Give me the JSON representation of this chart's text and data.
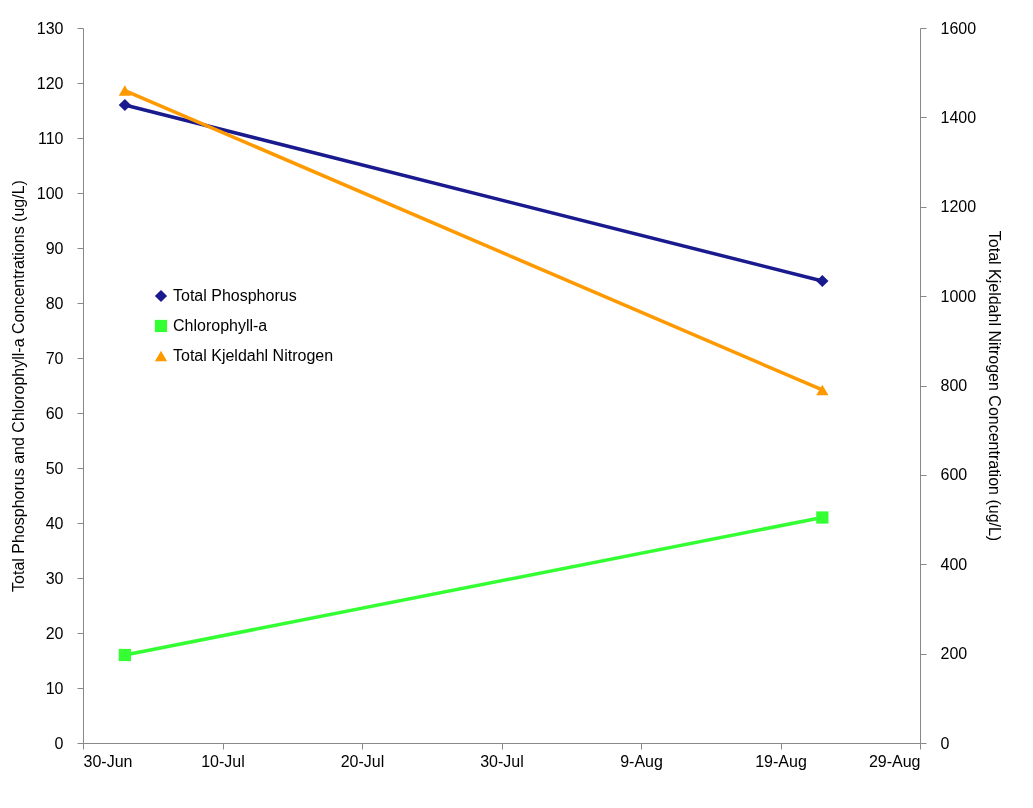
{
  "chart_data": {
    "type": "line",
    "ylabel": "Total Phosphorus and Chlorophyll-a Concentrations (ug/L)",
    "y2label": "Total Kjeldahl Nitrogen Concentration (ug/L)",
    "x": [
      "--07-03",
      "--08-22"
    ],
    "series": [
      {
        "name": "Total Phosphorus",
        "color": "#1a1a8f",
        "values": [
          116,
          84
        ],
        "marker": "diamond"
      },
      {
        "name": "Chlorophyll-a",
        "color": "#33ff33",
        "values": [
          16,
          41
        ],
        "marker": "square"
      },
      {
        "name": "Total Kjeldahl Nitrogen",
        "color": "#ff9900",
        "values": [
          1460,
          790
        ],
        "marker": "triangle",
        "axis": "y2"
      }
    ],
    "xlim": [
      "--06-30",
      "--08-29"
    ],
    "xticks": [
      {
        "value": "--06-30",
        "label": "30-Jun"
      },
      {
        "value": "--07-10",
        "label": "10-Jul"
      },
      {
        "value": "--07-20",
        "label": "20-Jul"
      },
      {
        "value": "--07-30",
        "label": "30-Jul"
      },
      {
        "value": "--08-09",
        "label": "9-Aug"
      },
      {
        "value": "--08-19",
        "label": "19-Aug"
      },
      {
        "value": "--08-29",
        "label": "29-Aug"
      }
    ],
    "ylim": [
      0,
      130
    ],
    "yticks": [
      0,
      10,
      20,
      30,
      40,
      50,
      60,
      70,
      80,
      90,
      100,
      110,
      120,
      130
    ],
    "y2lim": [
      0,
      1600
    ],
    "y2ticks": [
      0,
      200,
      400,
      600,
      800,
      1000,
      1200,
      1400,
      1600
    ],
    "legend": "left",
    "grid": false
  }
}
